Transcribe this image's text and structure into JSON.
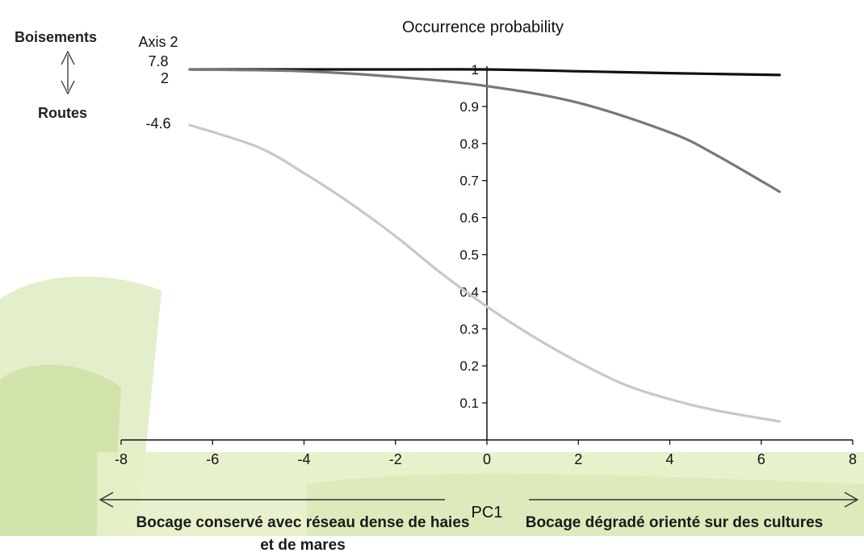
{
  "chart_data": {
    "type": "line",
    "title": "Occurrence probability",
    "xlabel": "PC1",
    "secondary_axis_title": "Axis 2",
    "xlim": [
      -8,
      8
    ],
    "ylim": [
      0,
      1
    ],
    "x_ticks": [
      -8,
      -6,
      -4,
      -2,
      0,
      2,
      4,
      6,
      8
    ],
    "y_ticks": [
      0.1,
      0.2,
      0.3,
      0.4,
      0.5,
      0.6,
      0.7,
      0.8,
      0.9,
      1
    ],
    "series": [
      {
        "name": "7.8",
        "color": "#111111",
        "x": [
          -6.5,
          -4,
          -2,
          0,
          2,
          4,
          6.4
        ],
        "y": [
          1.0,
          1.0,
          1.0,
          1.0,
          0.995,
          0.99,
          0.985
        ]
      },
      {
        "name": "2",
        "color": "#777777",
        "x": [
          -6.5,
          -4,
          -2,
          0,
          2,
          4,
          5,
          6.4
        ],
        "y": [
          1.0,
          0.995,
          0.98,
          0.955,
          0.91,
          0.83,
          0.77,
          0.67
        ]
      },
      {
        "name": "-4.6",
        "color": "#c8c8c8",
        "x": [
          -6.5,
          -5,
          -4,
          -3,
          -2,
          -1,
          0,
          1,
          2,
          3,
          4,
          5,
          6.4
        ],
        "y": [
          0.85,
          0.79,
          0.72,
          0.64,
          0.55,
          0.45,
          0.36,
          0.28,
          0.21,
          0.15,
          0.11,
          0.08,
          0.05
        ]
      }
    ]
  },
  "labels": {
    "axis2_top": "Boisements",
    "axis2_bottom": "Routes",
    "left_description": "Bocage conservé avec réseau dense de haies et de mares",
    "right_description": "Bocage dégradé orienté sur des cultures"
  }
}
